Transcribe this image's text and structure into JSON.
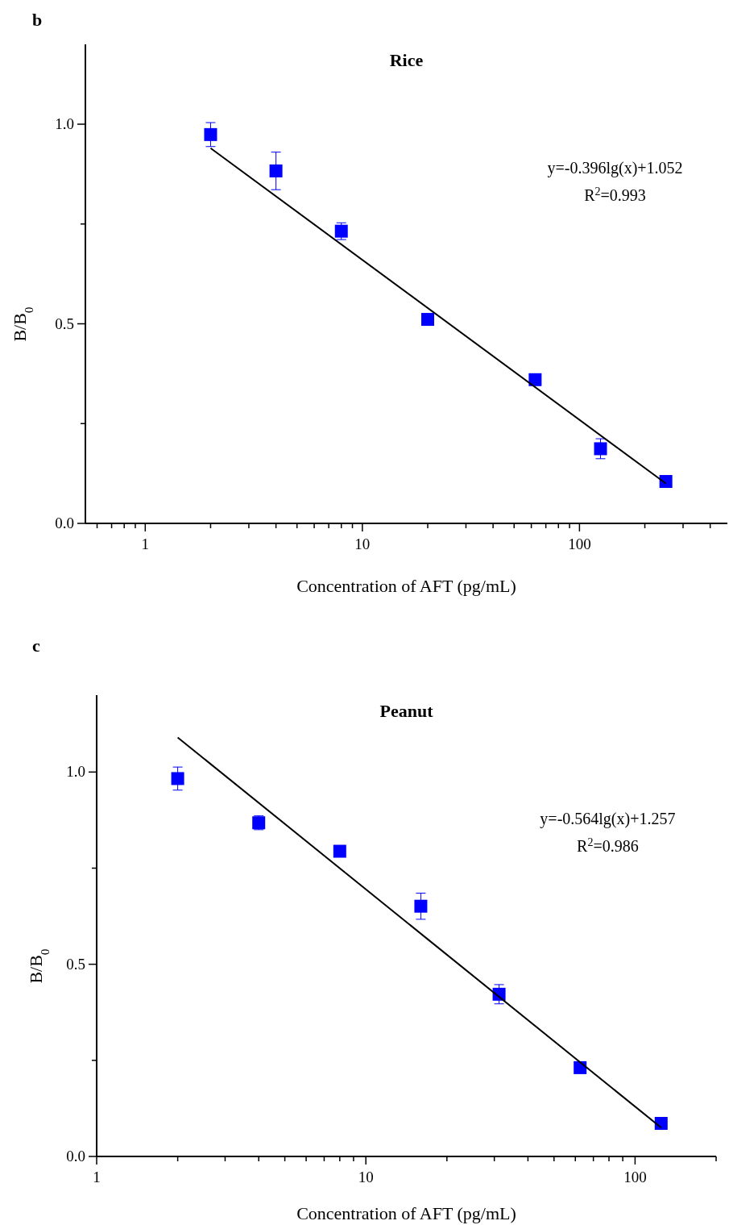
{
  "chart_data": [
    {
      "type": "scatter",
      "title": "Rice",
      "xlabel": "Concentration of AFT (pg/mL)",
      "ylabel": "B/B$_{0}$",
      "annotations": [
        "b",
        "y=-0.396lg(x)+1.052",
        "R$^{2}$=0.993"
      ],
      "log": "x",
      "xlim": [
        0.53,
        480
      ],
      "xticks": [
        {
          "value": 0.6,
          "label": null
        },
        {
          "value": 0.7,
          "label": null
        },
        {
          "value": 0.8,
          "label": null
        },
        {
          "value": 0.9,
          "label": null
        },
        1,
        {
          "value": 2,
          "label": null
        },
        {
          "value": 3,
          "label": null
        },
        {
          "value": 4,
          "label": null
        },
        {
          "value": 5,
          "label": null
        },
        {
          "value": 6,
          "label": null
        },
        {
          "value": 7,
          "label": null
        },
        {
          "value": 8,
          "label": null
        },
        {
          "value": 9,
          "label": null
        },
        10,
        {
          "value": 20,
          "label": null
        },
        {
          "value": 30,
          "label": null
        },
        {
          "value": 40,
          "label": null
        },
        {
          "value": 50,
          "label": null
        },
        {
          "value": 60,
          "label": null
        },
        {
          "value": 70,
          "label": null
        },
        {
          "value": 80,
          "label": null
        },
        {
          "value": 90,
          "label": null
        },
        100,
        {
          "value": 200,
          "label": null
        },
        {
          "value": 300,
          "label": null
        },
        {
          "value": 400,
          "label": null
        }
      ],
      "ylim": [
        0,
        1.2
      ],
      "yticks": [
        {
          "value": 0,
          "label": "0.0"
        },
        {
          "value": 0.25,
          "label": null
        },
        {
          "value": 0.5,
          "label": "0.5"
        },
        {
          "value": 0.75,
          "label": null
        },
        {
          "value": 1,
          "label": "1.0"
        }
      ],
      "series": [
        {
          "marker": "square",
          "color": "#0000ff",
          "x": [
            2,
            4,
            8,
            20,
            62.5,
            125,
            250
          ],
          "values": [
            0.974,
            0.883,
            0.732,
            0.511,
            0.36,
            0.187,
            0.105
          ],
          "errors": [
            0.03,
            0.047,
            0.021,
            null,
            null,
            0.025,
            null
          ]
        },
        {
          "type": "line",
          "marker": "none",
          "color": "#000000",
          "x": [
            2,
            250
          ],
          "values": [
            0.94,
            0.1
          ]
        }
      ]
    },
    {
      "type": "scatter",
      "title": "Peanut",
      "xlabel": "Concentration of AFT (pg/mL)",
      "ylabel": "B/B$_{0}$",
      "annotations": [
        "c",
        "y=-0.564lg(x)+1.257",
        "R$^{2}$=0.986"
      ],
      "log": "x",
      "xlim": [
        1,
        200
      ],
      "xticks": [
        1,
        {
          "value": 2,
          "label": null
        },
        {
          "value": 3,
          "label": null
        },
        {
          "value": 4,
          "label": null
        },
        {
          "value": 5,
          "label": null
        },
        {
          "value": 6,
          "label": null
        },
        {
          "value": 7,
          "label": null
        },
        {
          "value": 8,
          "label": null
        },
        {
          "value": 9,
          "label": null
        },
        10,
        {
          "value": 20,
          "label": null
        },
        {
          "value": 30,
          "label": null
        },
        {
          "value": 40,
          "label": null
        },
        {
          "value": 50,
          "label": null
        },
        {
          "value": 60,
          "label": null
        },
        {
          "value": 70,
          "label": null
        },
        {
          "value": 80,
          "label": null
        },
        {
          "value": 90,
          "label": null
        },
        100,
        {
          "value": 200,
          "label": null
        }
      ],
      "ylim": [
        0,
        1.2
      ],
      "yticks": [
        {
          "value": 0,
          "label": "0.0"
        },
        {
          "value": 0.25,
          "label": null
        },
        {
          "value": 0.5,
          "label": "0.5"
        },
        {
          "value": 0.75,
          "label": null
        },
        {
          "value": 1,
          "label": "1.0"
        }
      ],
      "series": [
        {
          "marker": "square",
          "color": "#0000ff",
          "x": [
            2,
            4,
            8,
            16,
            31.25,
            62.5,
            125
          ],
          "values": [
            0.983,
            0.868,
            0.794,
            0.651,
            0.422,
            0.231,
            0.086
          ],
          "errors": [
            0.03,
            0.018,
            null,
            0.034,
            0.025,
            null,
            null
          ]
        },
        {
          "type": "line",
          "marker": "none",
          "color": "#000000",
          "x": [
            2,
            125
          ],
          "values": [
            1.09,
            0.075
          ]
        }
      ]
    }
  ]
}
